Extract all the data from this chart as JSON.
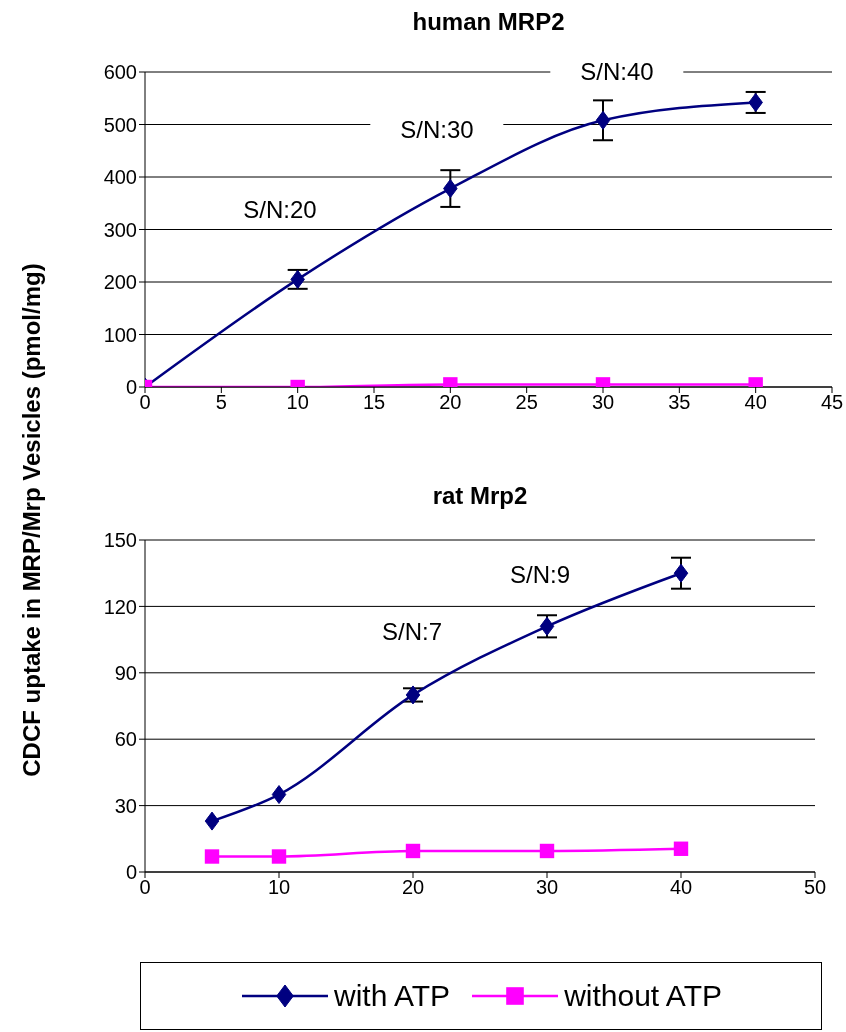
{
  "chart_data": [
    {
      "type": "line",
      "title": "human MRP2",
      "ylabel": "CDCF uptake in MRP/Mrp Vesicles (pmol/mg)",
      "x": [
        0,
        10,
        20,
        30,
        40
      ],
      "xlim": [
        0,
        45
      ],
      "xticks": [
        0,
        5,
        10,
        15,
        20,
        25,
        30,
        35,
        40,
        45
      ],
      "ylim": [
        0,
        600
      ],
      "yticks": [
        0,
        100,
        200,
        300,
        400,
        500,
        600
      ],
      "grid": "y",
      "legend": false,
      "annotations": [
        "S/N:20",
        "S/N:30",
        "S/N:40"
      ],
      "series": [
        {
          "color": "#000080",
          "marker": "diamond",
          "values": [
            0,
            205,
            378,
            508,
            542
          ],
          "errors": [
            null,
            18,
            35,
            38,
            20
          ]
        },
        {
          "color": "#ff00ff",
          "marker": "square",
          "values": [
            0,
            0,
            5,
            5,
            5
          ]
        }
      ]
    },
    {
      "type": "line",
      "title": "rat Mrp2",
      "x": [
        5,
        10,
        20,
        30,
        40
      ],
      "xlim": [
        0,
        50
      ],
      "xticks": [
        0,
        10,
        20,
        30,
        40,
        50
      ],
      "ylim": [
        0,
        150
      ],
      "yticks": [
        0,
        30,
        60,
        90,
        120,
        150
      ],
      "grid": "y",
      "legend": "bottom",
      "annotations": [
        "S/N:7",
        "S/N:9"
      ],
      "series": [
        {
          "name": "with ATP",
          "color": "#000080",
          "marker": "diamond",
          "values": [
            23,
            35,
            80,
            111,
            135
          ],
          "errors": [
            null,
            null,
            3,
            5,
            7
          ]
        },
        {
          "name": "without ATP",
          "color": "#ff00ff",
          "marker": "square",
          "values": [
            7,
            7,
            9.5,
            9.5,
            10.5
          ]
        }
      ]
    }
  ]
}
